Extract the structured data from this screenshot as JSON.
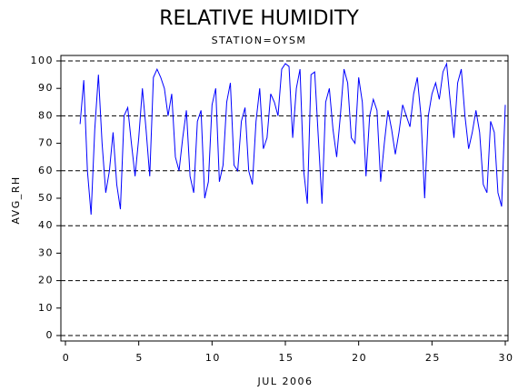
{
  "chart_data": {
    "type": "line",
    "title": "RELATIVE HUMIDITY",
    "subtitle": "STATION=OYSM",
    "x_label": "JUL 2006",
    "y_label": "AVG_RH",
    "xlim": [
      0,
      30
    ],
    "ylim": [
      0,
      100
    ],
    "xticks": [
      0,
      5,
      10,
      15,
      20,
      25,
      30
    ],
    "yticks": [
      0,
      10,
      20,
      30,
      40,
      50,
      60,
      70,
      80,
      90,
      100
    ],
    "ygrid": [
      0,
      20,
      40,
      60,
      80,
      100
    ],
    "x": [
      1,
      1.25,
      1.5,
      1.75,
      2,
      2.25,
      2.5,
      2.75,
      3,
      3.25,
      3.5,
      3.75,
      4,
      4.25,
      4.5,
      4.75,
      5,
      5.25,
      5.5,
      5.75,
      6,
      6.25,
      6.5,
      6.75,
      7,
      7.25,
      7.5,
      7.75,
      8,
      8.25,
      8.5,
      8.75,
      9,
      9.25,
      9.5,
      9.75,
      10,
      10.25,
      10.5,
      10.75,
      11,
      11.25,
      11.5,
      11.75,
      12,
      12.25,
      12.5,
      12.75,
      13,
      13.25,
      13.5,
      13.75,
      14,
      14.25,
      14.5,
      14.75,
      15,
      15.25,
      15.5,
      15.75,
      16,
      16.25,
      16.5,
      16.75,
      17,
      17.25,
      17.5,
      17.75,
      18,
      18.25,
      18.5,
      18.75,
      19,
      19.25,
      19.5,
      19.75,
      20,
      20.25,
      20.5,
      20.75,
      21,
      21.25,
      21.5,
      21.75,
      22,
      22.25,
      22.5,
      22.75,
      23,
      23.25,
      23.5,
      23.75,
      24,
      24.25,
      24.5,
      24.75,
      25,
      25.25,
      25.5,
      25.75,
      26,
      26.25,
      26.5,
      26.75,
      27,
      27.25,
      27.5,
      27.75,
      28,
      28.25,
      28.5,
      28.75,
      29,
      29.25,
      29.5,
      29.75,
      30
    ],
    "series": [
      {
        "name": "AVG_RH",
        "color": "#0000ff",
        "values": [
          77,
          93,
          60,
          44,
          75,
          95,
          70,
          52,
          60,
          74,
          55,
          46,
          80,
          83,
          70,
          58,
          72,
          90,
          75,
          58,
          94,
          97,
          94,
          90,
          80,
          88,
          65,
          60,
          72,
          82,
          58,
          52,
          78,
          82,
          50,
          56,
          84,
          90,
          56,
          62,
          85,
          92,
          62,
          60,
          78,
          83,
          60,
          55,
          78,
          90,
          68,
          72,
          88,
          85,
          80,
          97,
          99,
          98,
          72,
          90,
          97,
          60,
          48,
          95,
          96,
          72,
          48,
          85,
          90,
          75,
          65,
          80,
          97,
          92,
          72,
          70,
          94,
          85,
          58,
          80,
          86,
          82,
          56,
          70,
          82,
          75,
          66,
          74,
          84,
          80,
          76,
          88,
          94,
          80,
          50,
          80,
          88,
          92,
          86,
          96,
          99,
          85,
          72,
          92,
          97,
          80,
          68,
          74,
          82,
          74,
          55,
          52,
          78,
          74,
          52,
          47,
          84
        ]
      }
    ]
  }
}
